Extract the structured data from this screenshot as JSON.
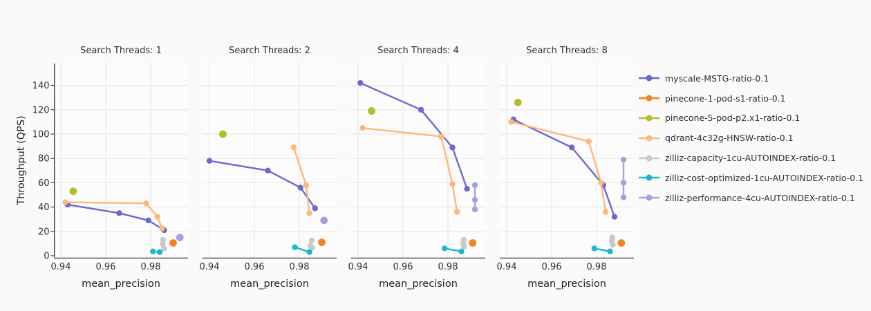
{
  "chart_data": {
    "type": "scatter",
    "xlabel": "mean_precision",
    "ylabel": "Throughput (QPS)",
    "x_ticks": [
      "0.94",
      "0.96",
      "0.98"
    ],
    "x_tick_values": [
      0.94,
      0.96,
      0.98
    ],
    "y_ticks": [
      0,
      20,
      40,
      60,
      80,
      100,
      120,
      140
    ],
    "x_domain": [
      0.9369,
      0.9966
    ],
    "y_domain": [
      0,
      158
    ],
    "grid": true,
    "legend_position": "right",
    "colors": {
      "grid": "#e9e9e9",
      "x_axis_bar": "#9e9e9e",
      "y_axis_line": "#444444",
      "background": "#fafafa",
      "panel_background": "#fcfcfc"
    },
    "series_meta": [
      {
        "name": "myscale-MSTG-ratio-0.1",
        "color": "#6b69cd"
      },
      {
        "name": "pinecone-1-pod-s1-ratio-0.1",
        "color": "#f58220"
      },
      {
        "name": "pinecone-5-pod-p2.x1-ratio-0.1",
        "color": "#b6bc28"
      },
      {
        "name": "qdrant-4c32g-HNSW-ratio-0.1",
        "color": "#fcb97a"
      },
      {
        "name": "zilliz-capacity-1cu-AUTOINDEX-ratio-0.1",
        "color": "#c9c9c9"
      },
      {
        "name": "zilliz-cost-optimized-1cu-AUTOINDEX-ratio-0.1",
        "color": "#1cb8cd"
      },
      {
        "name": "zilliz-performance-4cu-AUTOINDEX-ratio-0.1",
        "color": "#a6a0dc"
      }
    ],
    "facets": [
      {
        "title": "Search Threads: 1",
        "series": [
          {
            "name": "myscale-MSTG-ratio-0.1",
            "points": [
              [
                0.943,
                42
              ],
              [
                0.966,
                35
              ],
              [
                0.979,
                29
              ],
              [
                0.986,
                21
              ]
            ]
          },
          {
            "name": "pinecone-1-pod-s1-ratio-0.1",
            "points": [
              [
                0.99,
                10.5
              ]
            ]
          },
          {
            "name": "pinecone-5-pod-p2.x1-ratio-0.1",
            "points": [
              [
                0.9455,
                53
              ]
            ]
          },
          {
            "name": "qdrant-4c32g-HNSW-ratio-0.1",
            "points": [
              [
                0.942,
                44
              ],
              [
                0.978,
                43
              ],
              [
                0.983,
                32
              ],
              [
                0.985,
                22.5
              ]
            ]
          },
          {
            "name": "zilliz-capacity-1cu-AUTOINDEX-ratio-0.1",
            "points": [
              [
                0.9855,
                13
              ],
              [
                0.9853,
                9.5
              ],
              [
                0.986,
                6
              ]
            ]
          },
          {
            "name": "zilliz-cost-optimized-1cu-AUTOINDEX-ratio-0.1",
            "points": [
              [
                0.981,
                3.5
              ],
              [
                0.984,
                3
              ]
            ]
          },
          {
            "name": "zilliz-performance-4cu-AUTOINDEX-ratio-0.1",
            "points": [
              [
                0.993,
                15
              ]
            ]
          }
        ]
      },
      {
        "title": "Search Threads: 2",
        "series": [
          {
            "name": "myscale-MSTG-ratio-0.1",
            "points": [
              [
                0.94,
                78
              ],
              [
                0.966,
                70
              ],
              [
                0.9805,
                56
              ],
              [
                0.987,
                39
              ]
            ]
          },
          {
            "name": "pinecone-1-pod-s1-ratio-0.1",
            "points": [
              [
                0.99,
                11
              ]
            ]
          },
          {
            "name": "pinecone-5-pod-p2.x1-ratio-0.1",
            "points": [
              [
                0.946,
                100
              ]
            ]
          },
          {
            "name": "qdrant-4c32g-HNSW-ratio-0.1",
            "points": [
              [
                0.9775,
                89
              ],
              [
                0.983,
                58
              ],
              [
                0.9845,
                35
              ]
            ]
          },
          {
            "name": "zilliz-capacity-1cu-AUTOINDEX-ratio-0.1",
            "points": [
              [
                0.9855,
                12.5
              ],
              [
                0.985,
                8
              ],
              [
                0.9857,
                6.5
              ]
            ]
          },
          {
            "name": "zilliz-cost-optimized-1cu-AUTOINDEX-ratio-0.1",
            "points": [
              [
                0.978,
                7
              ],
              [
                0.9845,
                3
              ]
            ]
          },
          {
            "name": "zilliz-performance-4cu-AUTOINDEX-ratio-0.1",
            "points": [
              [
                0.991,
                29
              ]
            ]
          }
        ]
      },
      {
        "title": "Search Threads: 4",
        "series": [
          {
            "name": "myscale-MSTG-ratio-0.1",
            "points": [
              [
                0.941,
                142
              ],
              [
                0.968,
                120
              ],
              [
                0.982,
                89
              ],
              [
                0.9885,
                55
              ]
            ]
          },
          {
            "name": "pinecone-1-pod-s1-ratio-0.1",
            "points": [
              [
                0.991,
                10.5
              ]
            ]
          },
          {
            "name": "pinecone-5-pod-p2.x1-ratio-0.1",
            "points": [
              [
                0.946,
                119
              ]
            ]
          },
          {
            "name": "qdrant-4c32g-HNSW-ratio-0.1",
            "points": [
              [
                0.942,
                105
              ],
              [
                0.977,
                98
              ],
              [
                0.982,
                59
              ],
              [
                0.984,
                36
              ]
            ]
          },
          {
            "name": "zilliz-capacity-1cu-AUTOINDEX-ratio-0.1",
            "points": [
              [
                0.987,
                13
              ],
              [
                0.9868,
                10
              ],
              [
                0.9872,
                7.5
              ]
            ]
          },
          {
            "name": "zilliz-cost-optimized-1cu-AUTOINDEX-ratio-0.1",
            "points": [
              [
                0.9785,
                6
              ],
              [
                0.986,
                3.5
              ]
            ]
          },
          {
            "name": "zilliz-performance-4cu-AUTOINDEX-ratio-0.1",
            "points": [
              [
                0.992,
                58
              ],
              [
                0.992,
                46
              ],
              [
                0.992,
                38
              ]
            ]
          }
        ]
      },
      {
        "title": "Search Threads: 8",
        "series": [
          {
            "name": "myscale-MSTG-ratio-0.1",
            "points": [
              [
                0.943,
                112
              ],
              [
                0.969,
                89
              ],
              [
                0.983,
                58
              ],
              [
                0.988,
                32
              ]
            ]
          },
          {
            "name": "pinecone-1-pod-s1-ratio-0.1",
            "points": [
              [
                0.991,
                10.5
              ]
            ]
          },
          {
            "name": "pinecone-5-pod-p2.x1-ratio-0.1",
            "points": [
              [
                0.945,
                126
              ]
            ]
          },
          {
            "name": "qdrant-4c32g-HNSW-ratio-0.1",
            "points": [
              [
                0.942,
                110
              ],
              [
                0.9765,
                94
              ],
              [
                0.982,
                60
              ],
              [
                0.984,
                36
              ]
            ]
          },
          {
            "name": "zilliz-capacity-1cu-AUTOINDEX-ratio-0.1",
            "points": [
              [
                0.987,
                15
              ],
              [
                0.9868,
                12
              ],
              [
                0.9872,
                9
              ]
            ]
          },
          {
            "name": "zilliz-cost-optimized-1cu-AUTOINDEX-ratio-0.1",
            "points": [
              [
                0.979,
                6
              ],
              [
                0.986,
                3.5
              ]
            ]
          },
          {
            "name": "zilliz-performance-4cu-AUTOINDEX-ratio-0.1",
            "points": [
              [
                0.992,
                79
              ],
              [
                0.992,
                60
              ],
              [
                0.992,
                48
              ]
            ]
          }
        ]
      }
    ]
  }
}
